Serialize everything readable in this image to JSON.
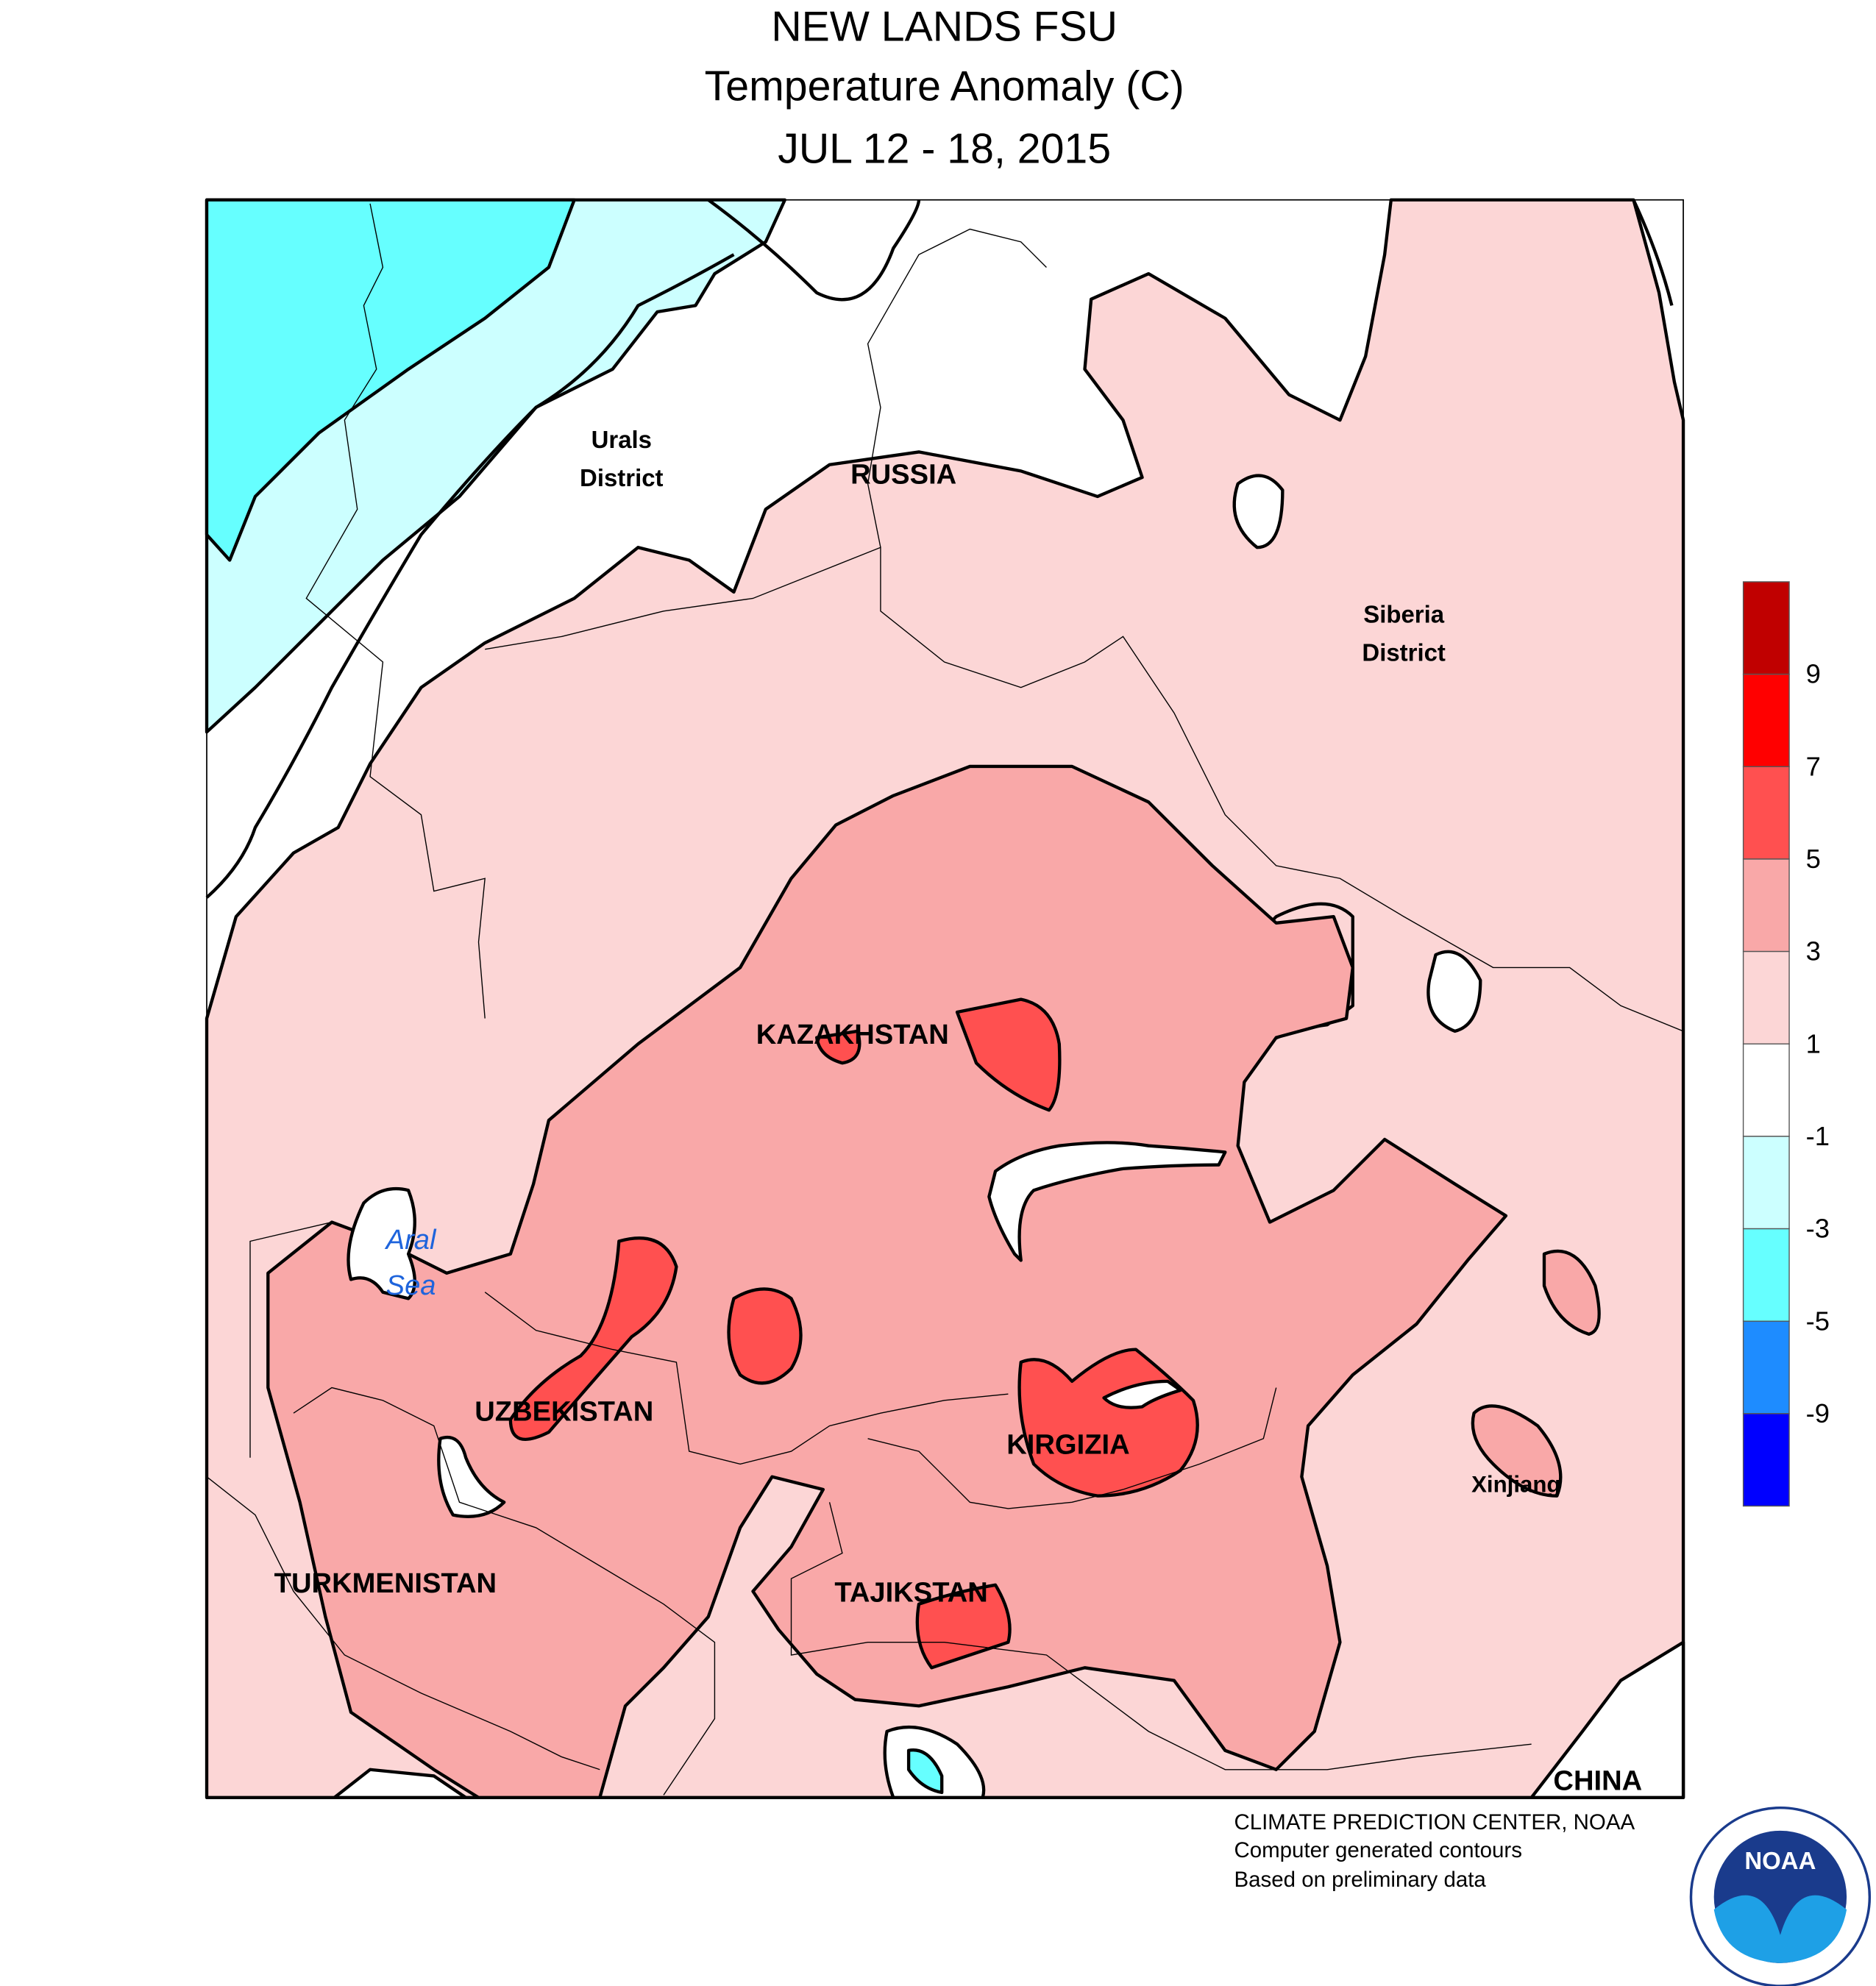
{
  "header": {
    "title": "NEW LANDS FSU",
    "subtitle": "Temperature Anomaly (C)",
    "date": "JUL 12 - 18, 2015"
  },
  "map": {
    "labels": [
      {
        "lines": [
          "Urals",
          "District"
        ]
      },
      {
        "lines": [
          "RUSSIA"
        ]
      },
      {
        "lines": [
          "Siberia",
          "District"
        ]
      },
      {
        "lines": [
          "KAZAKHSTAN"
        ]
      },
      {
        "lines": [
          "Aral",
          "Sea"
        ]
      },
      {
        "lines": [
          "UZBEKISTAN"
        ]
      },
      {
        "lines": [
          "KIRGIZIA"
        ]
      },
      {
        "lines": [
          "Xinjiang"
        ]
      },
      {
        "lines": [
          "TURKMENISTAN"
        ]
      },
      {
        "lines": [
          "TAJIKSTAN"
        ]
      },
      {
        "lines": [
          "CHINA"
        ]
      }
    ]
  },
  "legend": {
    "colors": [
      "#c00000",
      "#ff0000",
      "#ff5050",
      "#f9a8a8",
      "#fcd6d6",
      "#ffffff",
      "#ccffff",
      "#66ffff",
      "#1e8cff",
      "#0000ff"
    ],
    "ticks": [
      9,
      7,
      5,
      3,
      1,
      -1,
      -3,
      -5,
      -9
    ]
  },
  "footer": {
    "lines": [
      "CLIMATE PREDICTION CENTER, NOAA",
      "Computer generated contours",
      "Based on preliminary data"
    ]
  },
  "logo": {
    "text": "NOAA"
  }
}
